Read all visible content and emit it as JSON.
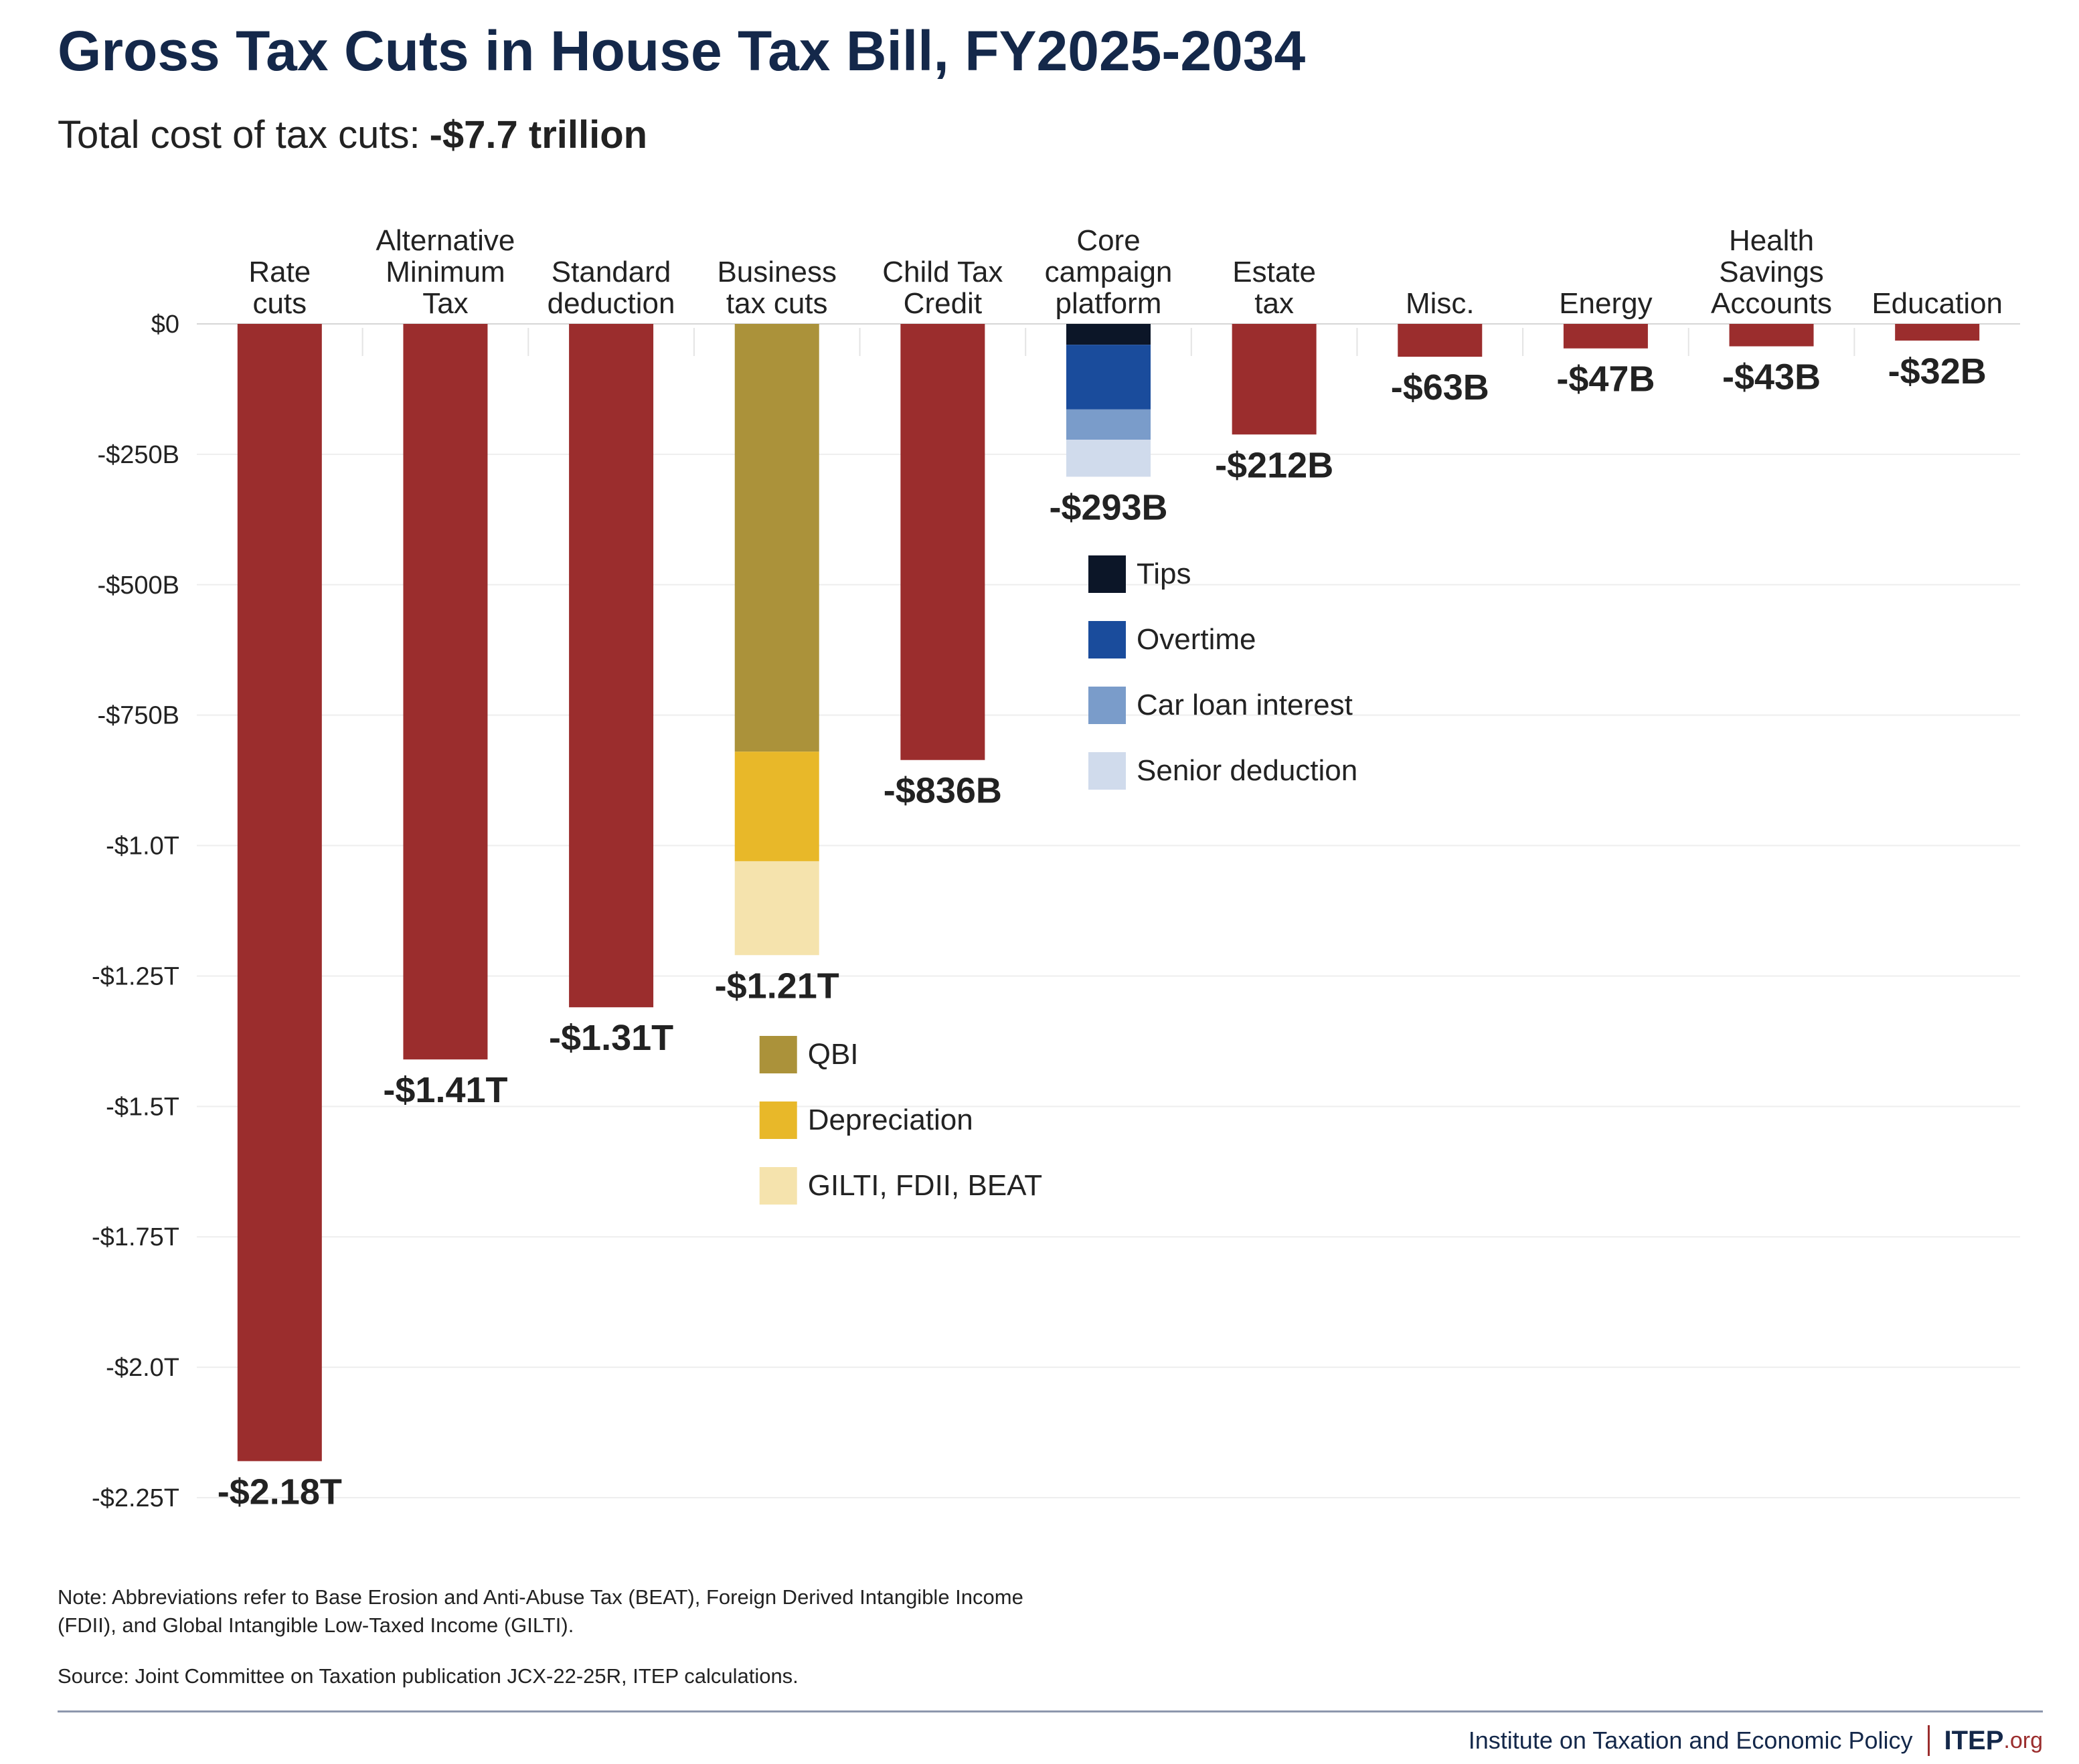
{
  "header": {
    "title": "Gross Tax Cuts in House Tax Bill, FY2025-2034",
    "subtitle_prefix": "Total cost of tax cuts:",
    "subtitle_value": "-$7.7 trillion"
  },
  "chart_data": {
    "type": "bar",
    "stacked": true,
    "ylim": [
      -2250,
      0
    ],
    "units": "billions of dollars",
    "y_ticks": [
      {
        "value": 0,
        "label": "$0"
      },
      {
        "value": -250,
        "label": "-$250B"
      },
      {
        "value": -500,
        "label": "-$500B"
      },
      {
        "value": -750,
        "label": "-$750B"
      },
      {
        "value": -1000,
        "label": "-$1.0T"
      },
      {
        "value": -1250,
        "label": "-$1.25T"
      },
      {
        "value": -1500,
        "label": "-$1.5T"
      },
      {
        "value": -1750,
        "label": "-$1.75T"
      },
      {
        "value": -2000,
        "label": "-$2.0T"
      },
      {
        "value": -2250,
        "label": "-$2.25T"
      }
    ],
    "grid": true,
    "categories": [
      {
        "label": [
          "Rate",
          "cuts"
        ],
        "total_label": "-$2.18T",
        "segments": [
          {
            "name": "",
            "value": -2180,
            "color": "#9b2d2d"
          }
        ]
      },
      {
        "label": [
          "Alternative",
          "Minimum",
          "Tax"
        ],
        "total_label": "-$1.41T",
        "segments": [
          {
            "name": "",
            "value": -1410,
            "color": "#9b2d2d"
          }
        ]
      },
      {
        "label": [
          "Standard",
          "deduction"
        ],
        "total_label": "-$1.31T",
        "segments": [
          {
            "name": "",
            "value": -1310,
            "color": "#9b2d2d"
          }
        ]
      },
      {
        "label": [
          "Business",
          "tax cuts"
        ],
        "total_label": "-$1.21T",
        "segments": [
          {
            "name": "QBI",
            "value": -820,
            "color": "#ab923a"
          },
          {
            "name": "Depreciation",
            "value": -210,
            "color": "#e8b829"
          },
          {
            "name": "GILTI, FDII, BEAT",
            "value": -180,
            "color": "#f5e3ad"
          }
        ]
      },
      {
        "label": [
          "Child Tax",
          "Credit"
        ],
        "total_label": "-$836B",
        "segments": [
          {
            "name": "",
            "value": -836,
            "color": "#9b2d2d"
          }
        ]
      },
      {
        "label": [
          "Core",
          "campaign",
          "platform"
        ],
        "total_label": "-$293B",
        "segments": [
          {
            "name": "Tips",
            "value": -40,
            "color": "#0c1628"
          },
          {
            "name": "Overtime",
            "value": -124,
            "color": "#1a4c9c"
          },
          {
            "name": "Car loan interest",
            "value": -58,
            "color": "#7a9cca"
          },
          {
            "name": "Senior deduction",
            "value": -71,
            "color": "#d0dbec"
          }
        ]
      },
      {
        "label": [
          "Estate",
          "tax"
        ],
        "total_label": "-$212B",
        "segments": [
          {
            "name": "",
            "value": -212,
            "color": "#9b2d2d"
          }
        ]
      },
      {
        "label": [
          "Misc."
        ],
        "total_label": "-$63B",
        "segments": [
          {
            "name": "",
            "value": -63,
            "color": "#9b2d2d"
          }
        ]
      },
      {
        "label": [
          "Energy"
        ],
        "total_label": "-$47B",
        "segments": [
          {
            "name": "",
            "value": -47,
            "color": "#9b2d2d"
          }
        ]
      },
      {
        "label": [
          "Health",
          "Savings",
          "Accounts"
        ],
        "total_label": "-$43B",
        "segments": [
          {
            "name": "",
            "value": -43,
            "color": "#9b2d2d"
          }
        ]
      },
      {
        "label": [
          "Education"
        ],
        "total_label": "-$32B",
        "segments": [
          {
            "name": "",
            "value": -32,
            "color": "#9b2d2d"
          }
        ]
      }
    ],
    "legends": [
      {
        "attached_to": "Core campaign platform",
        "entries": [
          {
            "name": "Tips",
            "color": "#0c1628"
          },
          {
            "name": "Overtime",
            "color": "#1a4c9c"
          },
          {
            "name": "Car loan interest",
            "color": "#7a9cca"
          },
          {
            "name": "Senior deduction",
            "color": "#d0dbec"
          }
        ]
      },
      {
        "attached_to": "Business tax cuts",
        "entries": [
          {
            "name": "QBI",
            "color": "#ab923a"
          },
          {
            "name": "Depreciation",
            "color": "#e8b829"
          },
          {
            "name": "GILTI, FDII, BEAT",
            "color": "#f5e3ad"
          }
        ]
      }
    ]
  },
  "footer": {
    "note": "Note: Abbreviations refer to Base Erosion and Anti-Abuse Tax (BEAT), Foreign Derived Intangible Income (FDII), and Global Intangible Low-Taxed Income (GILTI).",
    "source": "Source: Joint Committee on Taxation publication JCX-22-25R, ITEP calculations.",
    "org_name": "Institute on Taxation and Economic Policy",
    "logo_main": "ITEP",
    "logo_suffix": ".org"
  }
}
